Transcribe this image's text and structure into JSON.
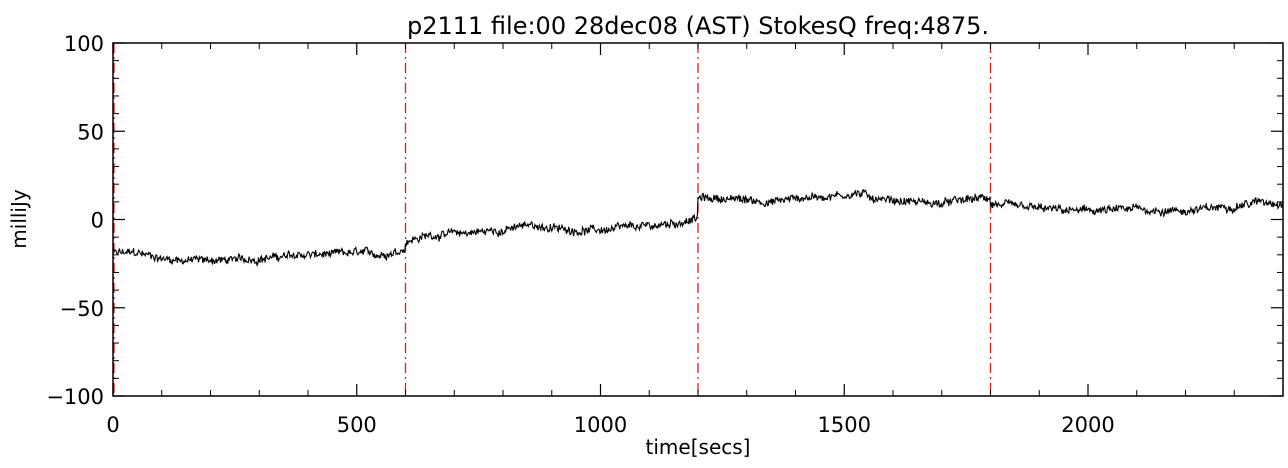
{
  "chart_data": {
    "type": "line",
    "title": "p2111 file:00 28dec08 (AST) StokesQ freq:4875.",
    "xlabel": "time[secs]",
    "ylabel": "milliJy",
    "xlim": [
      0,
      2400
    ],
    "ylim": [
      -100,
      100
    ],
    "x_ticks": [
      0,
      500,
      1000,
      1500,
      2000
    ],
    "x_tick_labels": [
      "0",
      "500",
      "1000",
      "1500",
      "2000"
    ],
    "y_ticks": [
      -100,
      -50,
      0,
      50,
      100
    ],
    "y_tick_labels": [
      "−100",
      "−50",
      "0",
      "50",
      "100"
    ],
    "grid": false,
    "vertical_markers": [
      {
        "x": 0,
        "style": "dash-dot",
        "color": "#d62020"
      },
      {
        "x": 600,
        "style": "dash-dot",
        "color": "#d62020"
      },
      {
        "x": 1200,
        "style": "dash-dot",
        "color": "#d62020"
      },
      {
        "x": 1800,
        "style": "dash-dot",
        "color": "#d62020"
      }
    ],
    "series": [
      {
        "color": "#000000",
        "x": [
          0,
          50,
          100,
          150,
          200,
          250,
          300,
          350,
          400,
          450,
          500,
          550,
          590,
          600,
          650,
          700,
          750,
          800,
          860,
          900,
          950,
          1000,
          1050,
          1100,
          1150,
          1190,
          1200,
          1250,
          1300,
          1350,
          1400,
          1450,
          1500,
          1530,
          1550,
          1600,
          1650,
          1700,
          1750,
          1790,
          1800,
          1850,
          1900,
          1950,
          2000,
          2050,
          2100,
          2150,
          2200,
          2250,
          2300,
          2350,
          2400
        ],
        "y": [
          -19,
          -19,
          -22,
          -23,
          -23,
          -23,
          -22,
          -21,
          -20,
          -20,
          -19,
          -20,
          -17,
          -12,
          -9,
          -8,
          -7,
          -6,
          -3,
          -5,
          -6,
          -6,
          -5,
          -4,
          -2,
          0,
          12,
          12,
          11,
          10,
          12,
          13,
          14,
          15,
          13,
          11,
          10,
          9,
          11,
          12,
          9,
          7,
          6,
          5,
          5,
          5,
          6,
          5,
          5,
          6,
          8,
          10,
          10
        ],
        "noise_amplitude": 2.5
      }
    ],
    "colors": {
      "series": "#000000",
      "markers": "#d62020",
      "axes": "#000000"
    }
  }
}
